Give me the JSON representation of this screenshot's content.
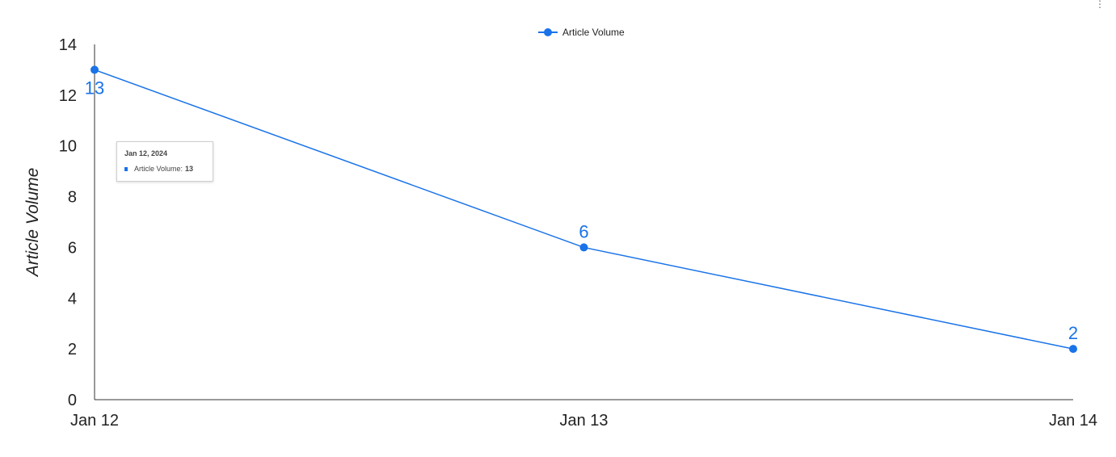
{
  "menu": {
    "icon": "more-vert-icon",
    "glyph": "⋮"
  },
  "tooltip": {
    "title": "Jan 12, 2024",
    "series_label": "Article Volume:",
    "value": "13"
  },
  "chart_data": {
    "type": "line",
    "categories": [
      "Jan 12",
      "Jan 13",
      "Jan 14"
    ],
    "series": [
      {
        "name": "Article Volume",
        "values": [
          13,
          6,
          2
        ],
        "color": "#1a73e8"
      }
    ],
    "title": "",
    "xlabel": "",
    "ylabel": "Article Volume",
    "ylim": [
      0,
      14
    ],
    "yticks": [
      0,
      2,
      4,
      6,
      8,
      10,
      12,
      14
    ],
    "grid": false,
    "legend": "top-center",
    "data_labels": true
  }
}
